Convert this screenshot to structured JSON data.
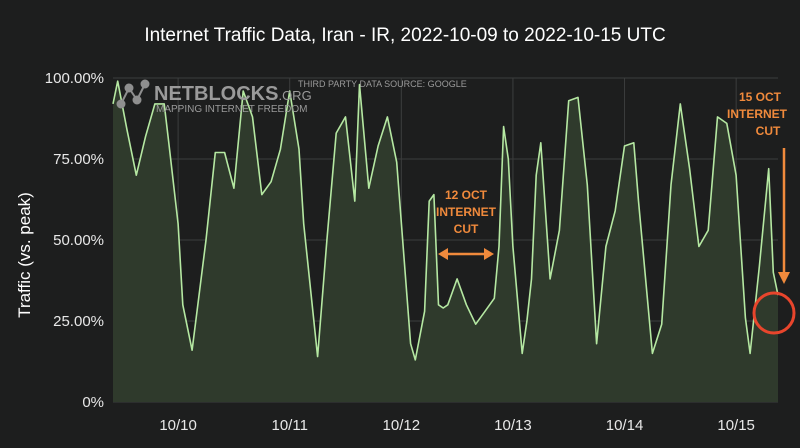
{
  "chart_data": {
    "type": "area",
    "title": "Internet Traffic Data, Iran - IR, 2022-10-09 to 2022-10-15 UTC",
    "xlabel": "",
    "ylabel": "Traffic (vs. peak)",
    "ylim": [
      0,
      100
    ],
    "xlim": [
      "2022-10-09 10:00",
      "2022-10-15 09:00"
    ],
    "y_ticks": [
      "0%",
      "25.00%",
      "50.00%",
      "75.00%",
      "100.00%"
    ],
    "y_tick_values": [
      0,
      25,
      50,
      75,
      100
    ],
    "x_ticks": [
      "10/10",
      "10/11",
      "10/12",
      "10/13",
      "10/14",
      "10/15"
    ],
    "x_tick_values": [
      "2022-10-10 00:00",
      "2022-10-11 00:00",
      "2022-10-12 00:00",
      "2022-10-13 00:00",
      "2022-10-14 00:00",
      "2022-10-15 00:00"
    ],
    "grid": true,
    "line_color": "#b5e8a2",
    "fill_color": "#2f3a2c",
    "background": "#1d1e1e",
    "series": [
      {
        "x": [
          "2022-10-09 10:00",
          "2022-10-09 11:00",
          "2022-10-09 13:00",
          "2022-10-09 15:00",
          "2022-10-09 17:00",
          "2022-10-09 19:00",
          "2022-10-09 21:00",
          "2022-10-09 22:00",
          "2022-10-10 00:00",
          "2022-10-10 01:00",
          "2022-10-10 03:00",
          "2022-10-10 06:00",
          "2022-10-10 08:00",
          "2022-10-10 10:00",
          "2022-10-10 12:00",
          "2022-10-10 14:00",
          "2022-10-10 16:00",
          "2022-10-10 18:00",
          "2022-10-10 20:00",
          "2022-10-10 22:00",
          "2022-10-11 00:00",
          "2022-10-11 02:00",
          "2022-10-11 03:00",
          "2022-10-11 06:00",
          "2022-10-11 08:00",
          "2022-10-11 10:00",
          "2022-10-11 12:00",
          "2022-10-11 14:00",
          "2022-10-11 15:00",
          "2022-10-11 17:00",
          "2022-10-11 19:00",
          "2022-10-11 21:00",
          "2022-10-11 23:00",
          "2022-10-12 02:00",
          "2022-10-12 03:00",
          "2022-10-12 05:00",
          "2022-10-12 06:00",
          "2022-10-12 07:00",
          "2022-10-12 08:00",
          "2022-10-12 09:00",
          "2022-10-12 10:00",
          "2022-10-12 12:00",
          "2022-10-12 14:00",
          "2022-10-12 16:00",
          "2022-10-12 18:00",
          "2022-10-12 20:00",
          "2022-10-12 21:00",
          "2022-10-12 22:00",
          "2022-10-12 23:00",
          "2022-10-13 00:00",
          "2022-10-13 02:00",
          "2022-10-13 03:00",
          "2022-10-13 04:00",
          "2022-10-13 05:00",
          "2022-10-13 06:00",
          "2022-10-13 08:00",
          "2022-10-13 10:00",
          "2022-10-13 12:00",
          "2022-10-13 14:00",
          "2022-10-13 16:00",
          "2022-10-13 18:00",
          "2022-10-13 20:00",
          "2022-10-13 22:00",
          "2022-10-14 00:00",
          "2022-10-14 02:00",
          "2022-10-14 03:00",
          "2022-10-14 06:00",
          "2022-10-14 08:00",
          "2022-10-14 10:00",
          "2022-10-14 12:00",
          "2022-10-14 14:00",
          "2022-10-14 16:00",
          "2022-10-14 18:00",
          "2022-10-14 20:00",
          "2022-10-14 22:00",
          "2022-10-15 00:00",
          "2022-10-15 02:00",
          "2022-10-15 03:00",
          "2022-10-15 05:00",
          "2022-10-15 07:00",
          "2022-10-15 08:00",
          "2022-10-15 09:00"
        ],
        "values": [
          92,
          99,
          84,
          70,
          82,
          92,
          92,
          80,
          55,
          30,
          16,
          50,
          77,
          77,
          66,
          96,
          88,
          64,
          68,
          78,
          96,
          78,
          55,
          14,
          50,
          83,
          88,
          62,
          98,
          66,
          79,
          88,
          74,
          18,
          13,
          28,
          62,
          64,
          30,
          29,
          30,
          38,
          30,
          24,
          28,
          32,
          48,
          85,
          75,
          48,
          15,
          25,
          38,
          70,
          80,
          38,
          53,
          93,
          94,
          67,
          18,
          48,
          59,
          79,
          80,
          62,
          15,
          24,
          67,
          92,
          72,
          48,
          53,
          88,
          86,
          70,
          26,
          15,
          42,
          72,
          40,
          33
        ]
      }
    ],
    "watermark": {
      "brand": "NETBLOCKS",
      "brand_suffix": ".ORG",
      "tagline": "MAPPING INTERNET FREEDOM",
      "source": "THIRD PARTY DATA SOURCE: GOOGLE"
    },
    "annotations": [
      {
        "lines": [
          "12 OCT",
          "INTERNET",
          "CUT"
        ],
        "color": "#f08a3c",
        "arrow": "double-horizontal",
        "from": "2022-10-12 06:00",
        "to": "2022-10-12 21:00"
      },
      {
        "lines": [
          "15 OCT",
          "INTERNET",
          "CUT"
        ],
        "color": "#f08a3c",
        "arrow": "down",
        "target": "2022-10-15 09:00"
      }
    ]
  }
}
